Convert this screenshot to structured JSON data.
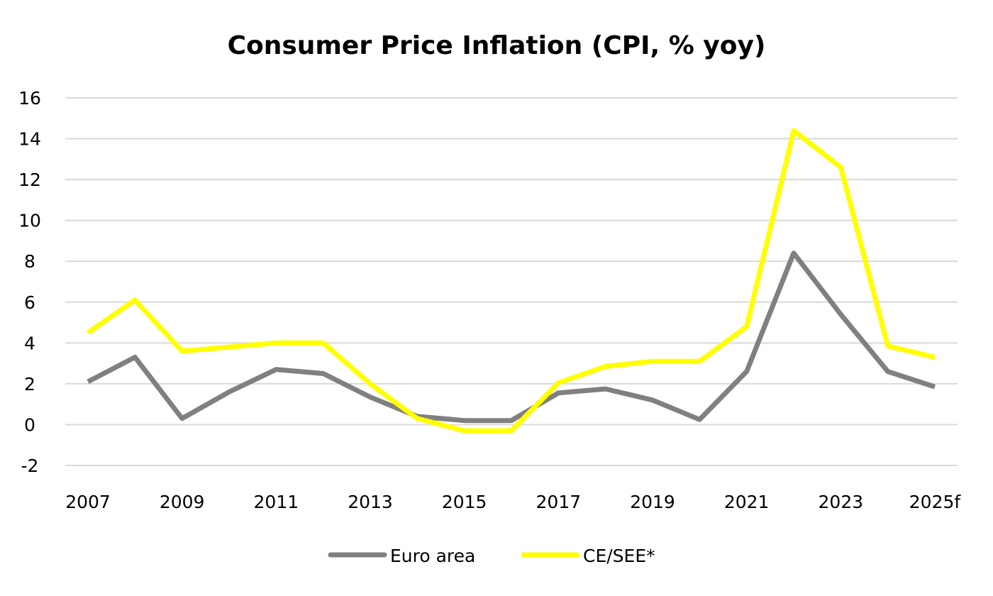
{
  "chart_data": {
    "type": "line",
    "title": "Consumer Price Inflation (CPI, % yoy)",
    "xlabel": "",
    "ylabel": "",
    "ylim": [
      -2,
      16
    ],
    "yticks": [
      "-2",
      "0",
      "2",
      "4",
      "6",
      "8",
      "10",
      "12",
      "14",
      "16"
    ],
    "categories": [
      "2007",
      "2008",
      "2009",
      "2010",
      "2011",
      "2012",
      "2013",
      "2014",
      "2015",
      "2016",
      "2017",
      "2018",
      "2019",
      "2020",
      "2021",
      "2022",
      "2023",
      "2024",
      "2025f"
    ],
    "xtick_labels": [
      "2007",
      "2009",
      "2011",
      "2013",
      "2015",
      "2017",
      "2019",
      "2021",
      "2023",
      "2025f"
    ],
    "grid": true,
    "legend_position": "bottom",
    "series": [
      {
        "name": "Euro area",
        "color": "#808080",
        "values": [
          2.1,
          3.3,
          0.3,
          1.6,
          2.7,
          2.5,
          1.35,
          0.4,
          0.2,
          0.2,
          1.55,
          1.75,
          1.2,
          0.25,
          2.6,
          8.4,
          5.4,
          2.6,
          1.85
        ]
      },
      {
        "name": "CE/SEE*",
        "color": "#ffff00",
        "values": [
          4.5,
          6.1,
          3.6,
          3.8,
          4.0,
          4.0,
          2.0,
          0.3,
          -0.3,
          -0.3,
          2.05,
          2.85,
          3.1,
          3.1,
          4.8,
          14.4,
          12.6,
          3.85,
          3.3
        ]
      }
    ]
  }
}
